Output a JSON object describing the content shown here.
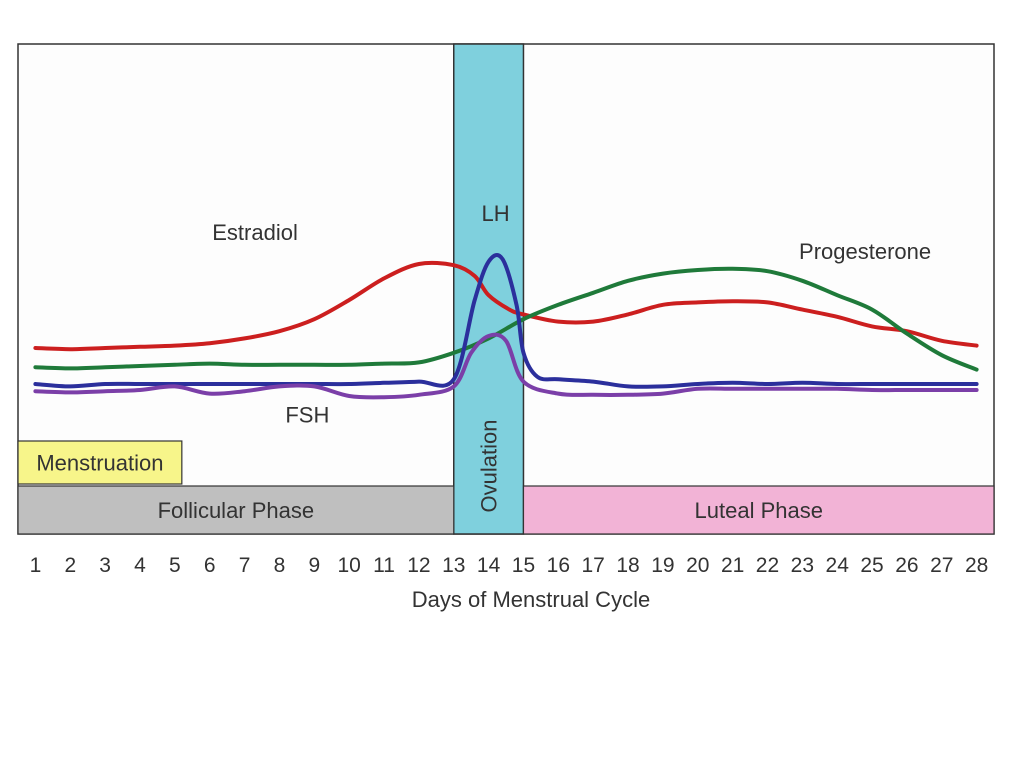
{
  "chart_data": {
    "type": "line",
    "xlabel": "Days of Menstrual Cycle",
    "x_ticks": [
      "1",
      "2",
      "3",
      "4",
      "5",
      "6",
      "7",
      "8",
      "9",
      "10",
      "11",
      "12",
      "13",
      "14",
      "15",
      "16",
      "17",
      "18",
      "19",
      "20",
      "21",
      "22",
      "23",
      "24",
      "25",
      "26",
      "27",
      "28"
    ],
    "xlim": [
      0.5,
      28.5
    ],
    "ylim": [
      0,
      100
    ],
    "grid": false,
    "legend": "none",
    "series": [
      {
        "name": "Estradiol",
        "color": "#cc1f1f",
        "points": [
          [
            1,
            30
          ],
          [
            2,
            29.5
          ],
          [
            3,
            30
          ],
          [
            4,
            30.5
          ],
          [
            5,
            31
          ],
          [
            6,
            32
          ],
          [
            7,
            34
          ],
          [
            8,
            37
          ],
          [
            9,
            42
          ],
          [
            10,
            50
          ],
          [
            11,
            59
          ],
          [
            12,
            65
          ],
          [
            13,
            64.5
          ],
          [
            13.6,
            60
          ],
          [
            14,
            52
          ],
          [
            14.6,
            46
          ],
          [
            15,
            44
          ],
          [
            16,
            41
          ],
          [
            17,
            41
          ],
          [
            18,
            44
          ],
          [
            19,
            48
          ],
          [
            20,
            49
          ],
          [
            21,
            49.5
          ],
          [
            22,
            49
          ],
          [
            23,
            46
          ],
          [
            24,
            43
          ],
          [
            25,
            39
          ],
          [
            26,
            37
          ],
          [
            27,
            33
          ],
          [
            28,
            31
          ]
        ]
      },
      {
        "name": "Progesterone",
        "color": "#1f7a3a",
        "points": [
          [
            1,
            22
          ],
          [
            2,
            21.5
          ],
          [
            3,
            22
          ],
          [
            4,
            22.5
          ],
          [
            5,
            23
          ],
          [
            6,
            23.5
          ],
          [
            7,
            23
          ],
          [
            8,
            23
          ],
          [
            9,
            23
          ],
          [
            10,
            23
          ],
          [
            11,
            23.5
          ],
          [
            12,
            24
          ],
          [
            13,
            28
          ],
          [
            14,
            34
          ],
          [
            15,
            42
          ],
          [
            16,
            48
          ],
          [
            17,
            53
          ],
          [
            18,
            58
          ],
          [
            19,
            61
          ],
          [
            20,
            62.5
          ],
          [
            21,
            63
          ],
          [
            22,
            62
          ],
          [
            23,
            58
          ],
          [
            24,
            52
          ],
          [
            25,
            46
          ],
          [
            26,
            36
          ],
          [
            27,
            27
          ],
          [
            28,
            21
          ]
        ]
      },
      {
        "name": "LH",
        "color": "#2b2f9c",
        "points": [
          [
            1,
            15
          ],
          [
            2,
            14
          ],
          [
            3,
            15
          ],
          [
            4,
            15
          ],
          [
            5,
            15
          ],
          [
            6,
            15
          ],
          [
            7,
            15
          ],
          [
            8,
            15
          ],
          [
            9,
            15
          ],
          [
            10,
            15
          ],
          [
            11,
            15.5
          ],
          [
            12,
            16
          ],
          [
            13,
            17
          ],
          [
            13.6,
            50
          ],
          [
            14,
            66
          ],
          [
            14.4,
            67
          ],
          [
            14.8,
            48
          ],
          [
            15,
            28
          ],
          [
            15.4,
            18
          ],
          [
            16,
            17
          ],
          [
            17,
            16
          ],
          [
            18,
            14
          ],
          [
            19,
            14
          ],
          [
            20,
            15
          ],
          [
            21,
            15.5
          ],
          [
            22,
            15
          ],
          [
            23,
            15.5
          ],
          [
            24,
            15
          ],
          [
            25,
            15
          ],
          [
            26,
            15
          ],
          [
            27,
            15
          ],
          [
            28,
            15
          ]
        ]
      },
      {
        "name": "FSH",
        "color": "#7b3fa8",
        "points": [
          [
            1,
            12
          ],
          [
            2,
            11.5
          ],
          [
            3,
            12
          ],
          [
            4,
            12.5
          ],
          [
            5,
            14
          ],
          [
            6,
            11
          ],
          [
            7,
            12
          ],
          [
            8,
            14
          ],
          [
            9,
            14
          ],
          [
            10,
            10
          ],
          [
            11,
            9.5
          ],
          [
            12,
            10.5
          ],
          [
            13,
            14
          ],
          [
            13.5,
            28
          ],
          [
            14,
            35
          ],
          [
            14.5,
            33
          ],
          [
            15,
            16
          ],
          [
            16,
            11
          ],
          [
            17,
            10.5
          ],
          [
            18,
            10.5
          ],
          [
            19,
            11
          ],
          [
            20,
            13
          ],
          [
            21,
            13
          ],
          [
            22,
            13
          ],
          [
            23,
            13
          ],
          [
            24,
            13
          ],
          [
            25,
            12.5
          ],
          [
            26,
            12.5
          ],
          [
            27,
            12.5
          ],
          [
            28,
            12.5
          ]
        ]
      }
    ],
    "series_labels": [
      {
        "series": "Estradiol",
        "text": "Estradiol",
        "x": 7.3,
        "y": 75
      },
      {
        "series": "LH",
        "text": "LH",
        "x": 14.2,
        "y": 83
      },
      {
        "series": "Progesterone",
        "text": "Progesterone",
        "x": 24.8,
        "y": 67
      },
      {
        "series": "FSH",
        "text": "FSH",
        "x": 8.8,
        "y": -1
      }
    ],
    "phase_bands": [
      {
        "name": "Ovulation",
        "from": 13,
        "to": 15,
        "color": "#7fd0dd",
        "orientation": "vertical"
      }
    ],
    "phase_bars": [
      {
        "name": "Menstruation",
        "from": 1,
        "to": 5.2,
        "color": "#f7f58a",
        "row": 1
      },
      {
        "name": "Follicular Phase",
        "from": 1,
        "to": 13,
        "color": "#bfbfbf",
        "row": 2
      },
      {
        "name": "Luteal Phase",
        "from": 15,
        "to": 28.5,
        "color": "#f2b3d6",
        "row": 2
      }
    ]
  }
}
